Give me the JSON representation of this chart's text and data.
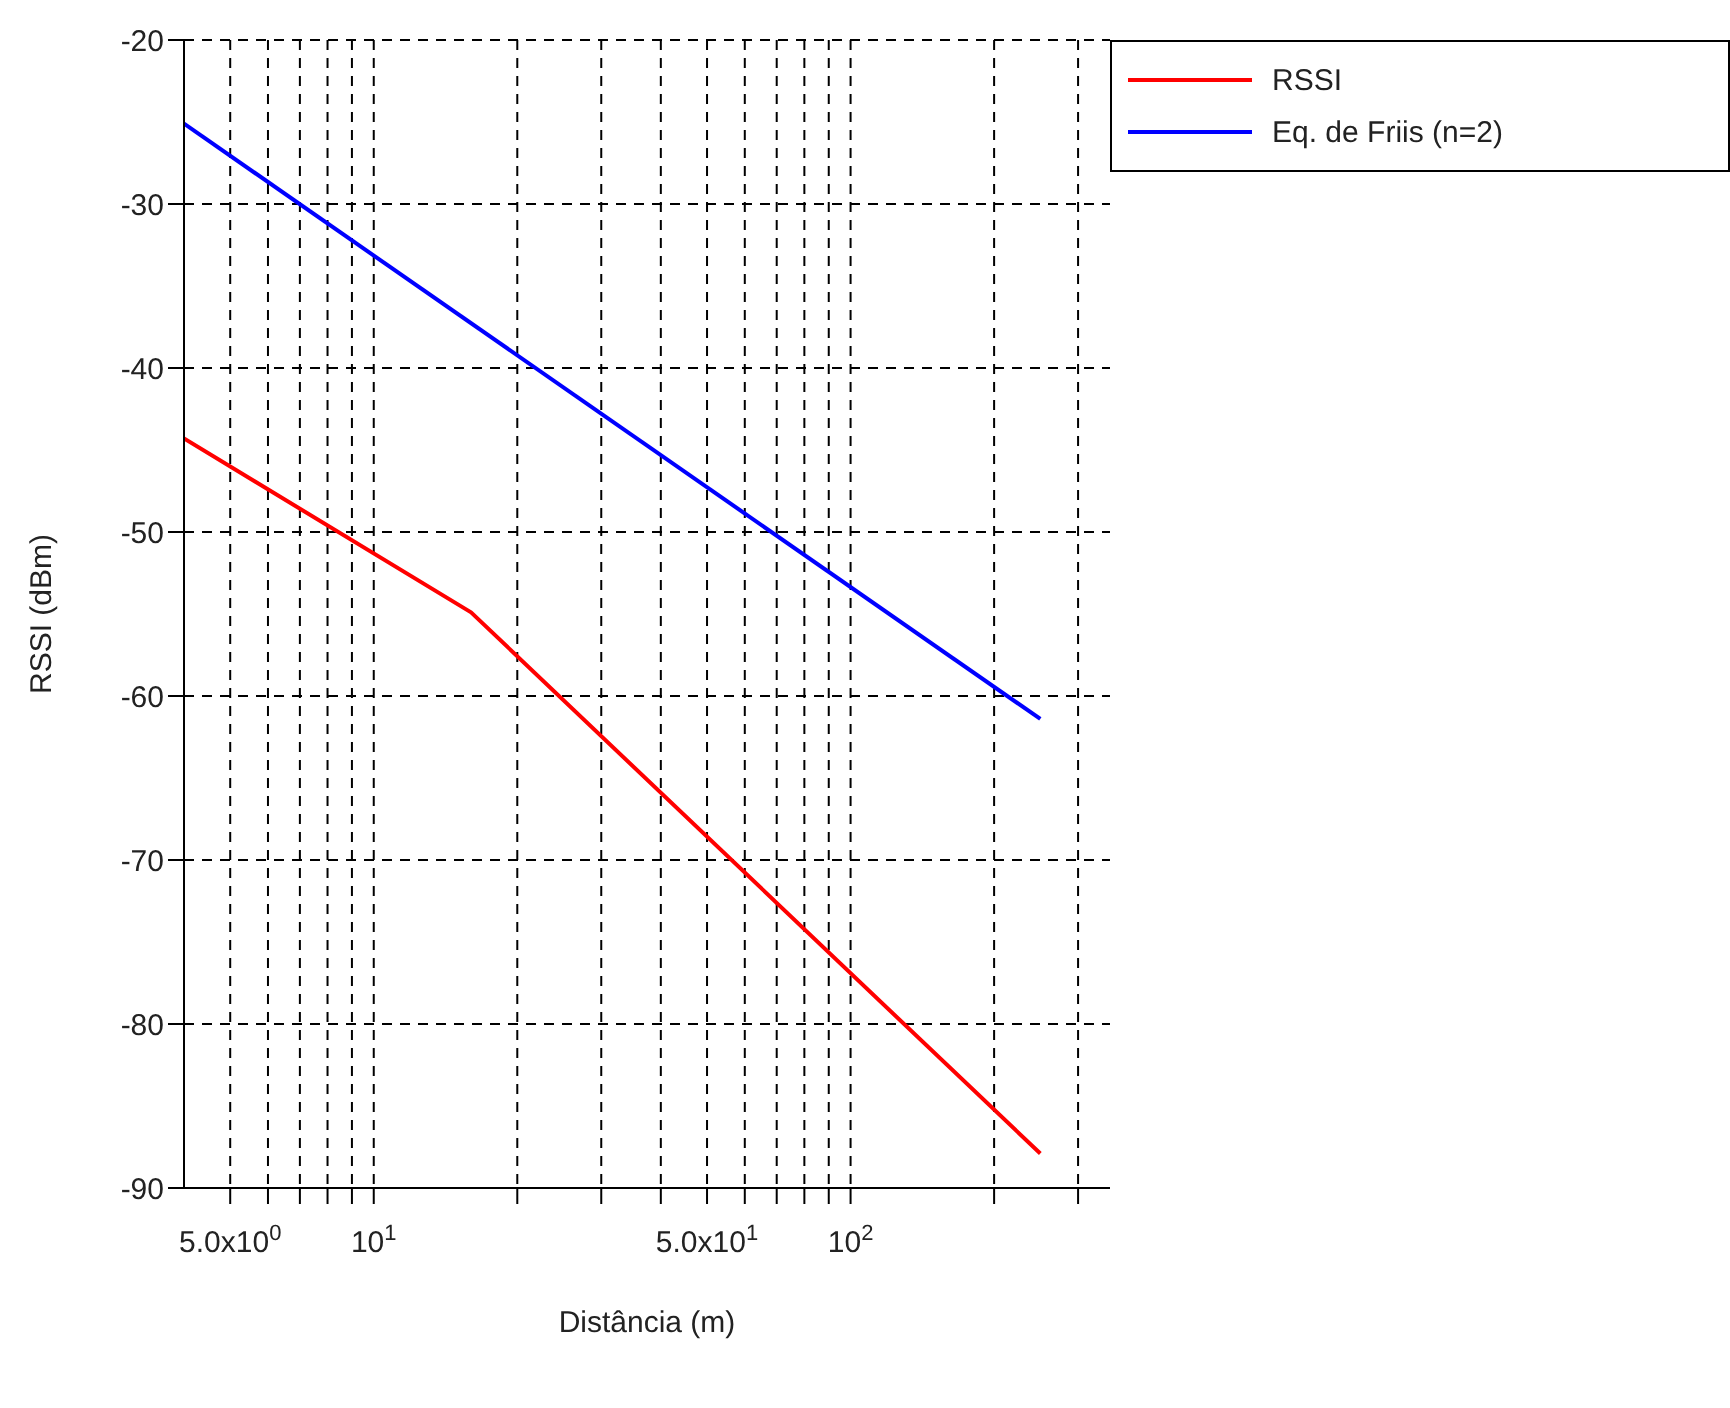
{
  "chart_data": {
    "type": "line",
    "xlabel": "Distância (m)",
    "ylabel": "RSSI (dBm)",
    "log": "x",
    "xlim": [
      4,
      350
    ],
    "ylim": [
      -90,
      -20
    ],
    "xticks": [
      {
        "value": 5,
        "label": "5.0x10$^{0}$"
      },
      {
        "value": 6,
        "label": null
      },
      {
        "value": 7,
        "label": null
      },
      {
        "value": 8,
        "label": null
      },
      {
        "value": 9,
        "label": null
      },
      {
        "value": 10,
        "label": "10$^{1}$"
      },
      {
        "value": 20,
        "label": null
      },
      {
        "value": 30,
        "label": null
      },
      {
        "value": 40,
        "label": null
      },
      {
        "value": 50,
        "label": "5.0x10$^{1}$"
      },
      {
        "value": 60,
        "label": null
      },
      {
        "value": 70,
        "label": null
      },
      {
        "value": 80,
        "label": null
      },
      {
        "value": 90,
        "label": null
      },
      {
        "value": 100,
        "label": "10$^{2}$"
      },
      {
        "value": 200,
        "label": null
      },
      {
        "value": 300,
        "label": null
      }
    ],
    "yticks": [
      -90,
      -80,
      -70,
      -60,
      -50,
      -40,
      -30,
      -20
    ],
    "grid": true,
    "legend": "top right",
    "line_style": "solid",
    "series": [
      {
        "name": "RSSI",
        "color": "#ff0000",
        "x": [
          4,
          16,
          250
        ],
        "values": [
          -44.3,
          -54.9,
          -87.9
        ]
      },
      {
        "name": "Eq. de Friis (n=2)",
        "color": "#0000ff",
        "x": [
          4,
          250
        ],
        "values": [
          -25.1,
          -61.4
        ]
      }
    ]
  }
}
